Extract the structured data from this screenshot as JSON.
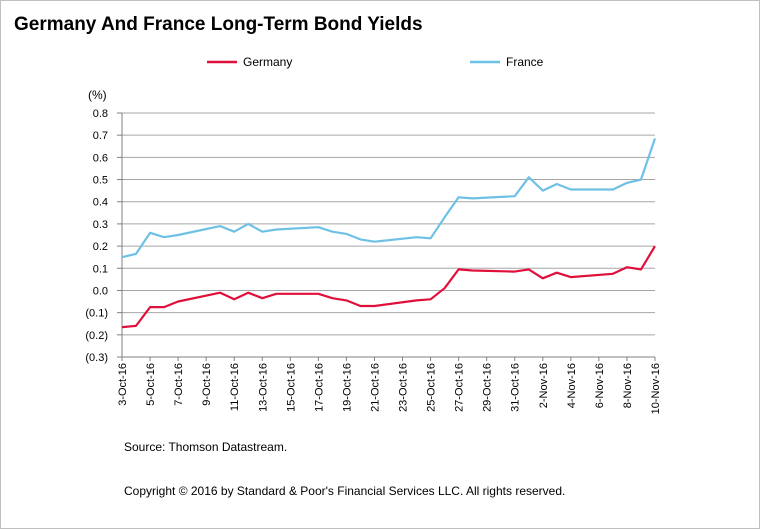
{
  "title": "Germany And France Long-Term Bond Yields",
  "source": "Source: Thomson Datastream.",
  "copyright": "Copyright © 2016 by Standard & Poor's Financial Services LLC. All rights reserved.",
  "colors": {
    "Germany": "#e0103b",
    "France": "#6ec1e4",
    "grid": "#a6a6a6",
    "axis": "#808080"
  },
  "chart_data": {
    "type": "line",
    "ylabel": "(%)",
    "ylim": [
      -0.3,
      0.8
    ],
    "yticks": [
      -0.3,
      -0.2,
      -0.1,
      0.0,
      0.1,
      0.2,
      0.3,
      0.4,
      0.5,
      0.6,
      0.7,
      0.8
    ],
    "ytick_labels": [
      "(0.3)",
      "(0.2)",
      "(0.1)",
      "0.0",
      "0.1",
      "0.2",
      "0.3",
      "0.4",
      "0.5",
      "0.6",
      "0.7",
      "0.8"
    ],
    "x": [
      "3-Oct-16",
      "4-Oct-16",
      "5-Oct-16",
      "6-Oct-16",
      "7-Oct-16",
      "10-Oct-16",
      "11-Oct-16",
      "12-Oct-16",
      "13-Oct-16",
      "14-Oct-16",
      "17-Oct-16",
      "18-Oct-16",
      "19-Oct-16",
      "20-Oct-16",
      "21-Oct-16",
      "24-Oct-16",
      "25-Oct-16",
      "26-Oct-16",
      "27-Oct-16",
      "28-Oct-16",
      "31-Oct-16",
      "1-Nov-16",
      "2-Nov-16",
      "3-Nov-16",
      "4-Nov-16",
      "7-Nov-16",
      "8-Nov-16",
      "9-Nov-16",
      "10-Nov-16"
    ],
    "xtick_labels": [
      "3-Oct-16",
      "5-Oct-16",
      "7-Oct-16",
      "9-Oct-16",
      "11-Oct-16",
      "13-Oct-16",
      "15-Oct-16",
      "17-Oct-16",
      "19-Oct-16",
      "21-Oct-16",
      "23-Oct-16",
      "25-Oct-16",
      "27-Oct-16",
      "29-Oct-16",
      "31-Oct-16",
      "2-Nov-16",
      "4-Nov-16",
      "6-Nov-16",
      "8-Nov-16",
      "10-Nov-16"
    ],
    "legend": "top-center",
    "grid": true,
    "series": [
      {
        "name": "Germany",
        "values": [
          -0.165,
          -0.16,
          -0.075,
          -0.075,
          -0.05,
          -0.01,
          -0.04,
          -0.01,
          -0.035,
          -0.015,
          -0.015,
          -0.035,
          -0.045,
          -0.07,
          -0.07,
          -0.045,
          -0.04,
          0.01,
          0.095,
          0.09,
          0.085,
          0.095,
          0.055,
          0.08,
          0.06,
          0.075,
          0.105,
          0.095,
          0.2
        ]
      },
      {
        "name": "France",
        "values": [
          0.15,
          0.165,
          0.26,
          0.24,
          0.25,
          0.29,
          0.265,
          0.3,
          0.265,
          0.275,
          0.285,
          0.265,
          0.255,
          0.23,
          0.22,
          0.24,
          0.235,
          0.33,
          0.42,
          0.415,
          0.425,
          0.51,
          0.45,
          0.48,
          0.455,
          0.455,
          0.485,
          0.5,
          0.685
        ]
      }
    ]
  }
}
